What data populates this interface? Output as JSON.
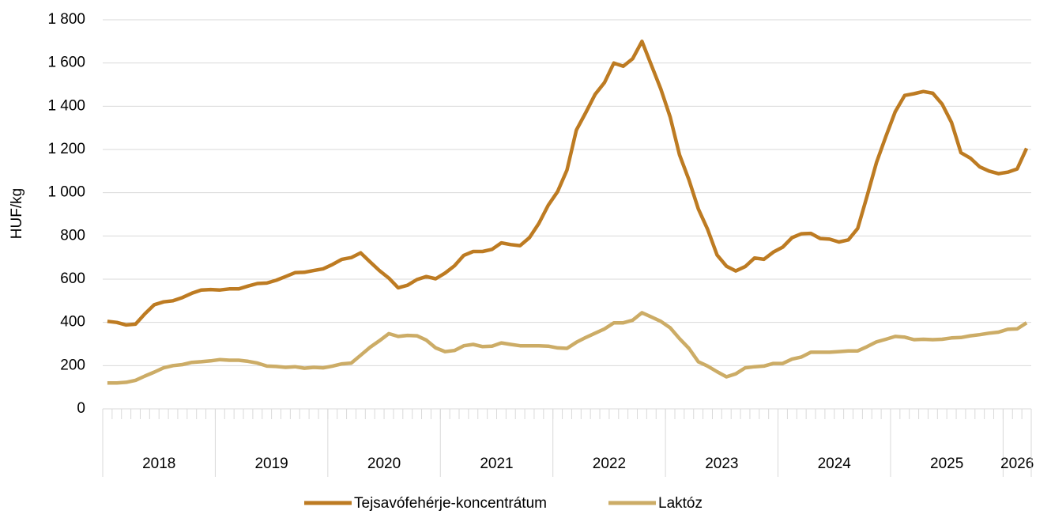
{
  "chart_data": {
    "type": "line",
    "ylabel": "HUF/kg",
    "categories": [
      "2018",
      "2018",
      "2018",
      "2018",
      "2018",
      "2018",
      "2018",
      "2018",
      "2018",
      "2018",
      "2018",
      "2018",
      "2019",
      "2019",
      "2019",
      "2019",
      "2019",
      "2019",
      "2019",
      "2019",
      "2019",
      "2019",
      "2019",
      "2019",
      "2020",
      "2020",
      "2020",
      "2020",
      "2020",
      "2020",
      "2020",
      "2020",
      "2020",
      "2020",
      "2020",
      "2020",
      "2021",
      "2021",
      "2021",
      "2021",
      "2021",
      "2021",
      "2021",
      "2021",
      "2021",
      "2021",
      "2021",
      "2021",
      "2022",
      "2022",
      "2022",
      "2022",
      "2022",
      "2022",
      "2022",
      "2022",
      "2022",
      "2022",
      "2022",
      "2022",
      "2023",
      "2023",
      "2023",
      "2023",
      "2023",
      "2023",
      "2023",
      "2023",
      "2023",
      "2023",
      "2023",
      "2023",
      "2024",
      "2024",
      "2024",
      "2024",
      "2024",
      "2024",
      "2024",
      "2024",
      "2024",
      "2024",
      "2024",
      "2024",
      "2025",
      "2025",
      "2025",
      "2025",
      "2025",
      "2025",
      "2025",
      "2025",
      "2025",
      "2025",
      "2025",
      "2025",
      "2026",
      "2026",
      "2026"
    ],
    "series": [
      {
        "name": "Tejsavófehérje-koncentrátum",
        "color": "#bd7b22",
        "values": [
          405,
          400,
          388,
          392,
          440,
          482,
          495,
          500,
          515,
          535,
          550,
          552,
          550,
          555,
          555,
          568,
          580,
          582,
          595,
          612,
          630,
          632,
          640,
          648,
          668,
          692,
          700,
          722,
          680,
          640,
          605,
          560,
          572,
          598,
          612,
          602,
          628,
          662,
          710,
          728,
          728,
          738,
          768,
          760,
          755,
          792,
          858,
          942,
          1005,
          1105,
          1290,
          1370,
          1455,
          1510,
          1600,
          1585,
          1620,
          1700,
          1590,
          1480,
          1350,
          1175,
          1060,
          925,
          830,
          712,
          660,
          638,
          658,
          698,
          692,
          725,
          748,
          792,
          810,
          812,
          788,
          785,
          772,
          782,
          835,
          985,
          1140,
          1260,
          1375,
          1450,
          1458,
          1468,
          1460,
          1410,
          1325,
          1185,
          1160,
          1120,
          1100,
          1088,
          1095,
          1110,
          1205
        ]
      },
      {
        "name": "Laktóz",
        "color": "#ccac66",
        "values": [
          120,
          120,
          123,
          132,
          152,
          170,
          190,
          200,
          205,
          215,
          218,
          222,
          228,
          225,
          225,
          220,
          212,
          198,
          196,
          192,
          195,
          188,
          192,
          190,
          198,
          208,
          212,
          248,
          285,
          315,
          348,
          335,
          340,
          338,
          318,
          282,
          265,
          270,
          292,
          298,
          288,
          290,
          305,
          298,
          292,
          292,
          292,
          290,
          282,
          280,
          308,
          330,
          350,
          370,
          398,
          398,
          410,
          445,
          425,
          405,
          375,
          325,
          280,
          218,
          198,
          172,
          148,
          162,
          190,
          195,
          198,
          210,
          210,
          230,
          240,
          262,
          262,
          262,
          265,
          268,
          268,
          288,
          310,
          322,
          335,
          332,
          320,
          322,
          320,
          322,
          328,
          330,
          338,
          343,
          350,
          355,
          368,
          370,
          398
        ]
      }
    ],
    "ylim": [
      0,
      1800
    ],
    "yticks": [
      0,
      200,
      400,
      600,
      800,
      {
        "value": 1000,
        "label": "1 000"
      },
      {
        "value": 1200,
        "label": "1 200"
      },
      {
        "value": 1400,
        "label": "1 400"
      },
      {
        "value": 1600,
        "label": "1 600"
      },
      {
        "value": 1800,
        "label": "1 800"
      }
    ],
    "grid": true,
    "legend": "bottom"
  }
}
